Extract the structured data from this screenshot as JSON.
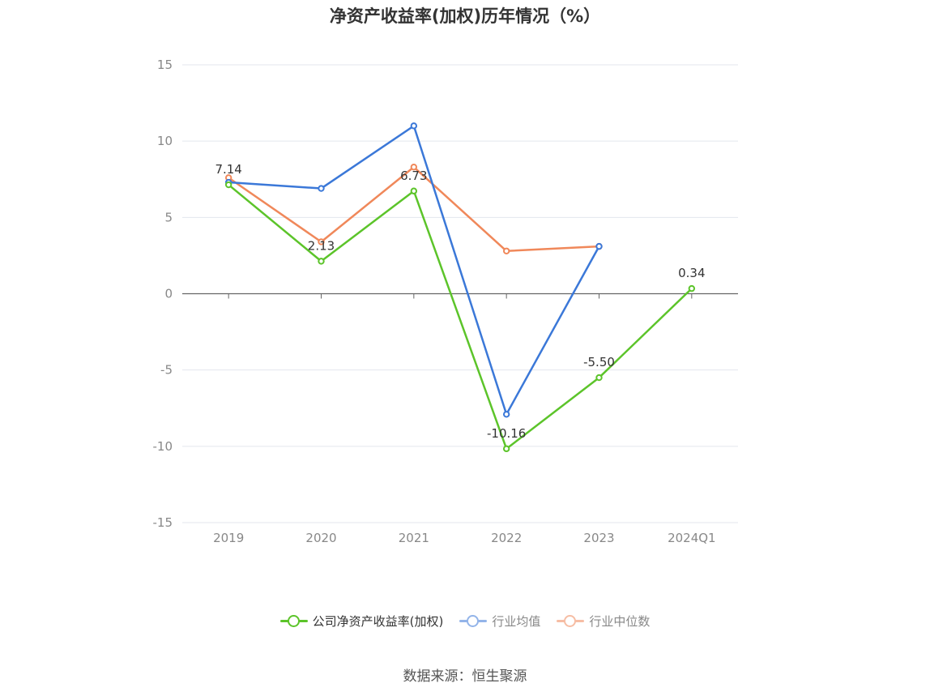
{
  "chart_data": {
    "type": "line",
    "title": "净资产收益率(加权)历年情况（%）",
    "categories": [
      "2019",
      "2020",
      "2021",
      "2022",
      "2023",
      "2024Q1"
    ],
    "ylim": [
      -15,
      15
    ],
    "yticks": [
      15,
      10,
      5,
      0,
      -5,
      -10,
      -15
    ],
    "grid": true,
    "legend_position": "bottom",
    "series": [
      {
        "name": "公司净资产收益率(加权)",
        "color": "#5cc42a",
        "values": [
          7.14,
          2.13,
          6.73,
          -10.16,
          -5.5,
          0.34
        ],
        "labels": [
          "7.14",
          "2.13",
          "6.73",
          "-10.16",
          "-5.50",
          "0.34"
        ]
      },
      {
        "name": "行业均值",
        "color": "#3b78d8",
        "values": [
          7.3,
          6.9,
          11.0,
          -7.9,
          3.1,
          null
        ]
      },
      {
        "name": "行业中位数",
        "color": "#f0885a",
        "values": [
          7.6,
          3.4,
          8.3,
          2.8,
          3.1,
          null
        ]
      }
    ]
  },
  "source": "数据来源：恒生聚源"
}
